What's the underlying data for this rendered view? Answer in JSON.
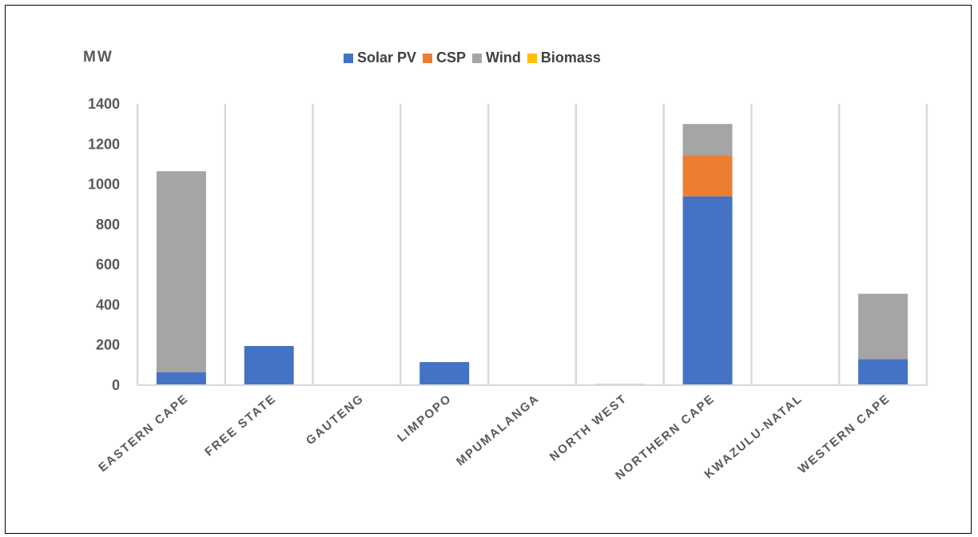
{
  "chart_data": {
    "type": "bar",
    "stacked": true,
    "title": "",
    "ylabel": "MW",
    "xlabel": "",
    "ylim": [
      0,
      1400
    ],
    "yticks": [
      0,
      200,
      400,
      600,
      800,
      1000,
      1200,
      1400
    ],
    "ytick_labels": [
      "0",
      "200",
      "400",
      "600",
      "800",
      "1000",
      "1200",
      "1400"
    ],
    "categories": [
      "EASTERN CAPE",
      "FREE STATE",
      "GAUTENG",
      "LIMPOPO",
      "MPUMALANGA",
      "NORTH WEST",
      "NORTHERN CAPE",
      "KWAZULU-NATAL",
      "WESTERN CAPE"
    ],
    "series": [
      {
        "name": "Solar PV",
        "color": "#4472C4",
        "values": [
          65,
          195,
          0,
          115,
          0,
          5,
          940,
          0,
          130
        ]
      },
      {
        "name": "CSP",
        "color": "#ED7D31",
        "values": [
          0,
          0,
          0,
          0,
          0,
          0,
          205,
          0,
          0
        ]
      },
      {
        "name": "Wind",
        "color": "#A5A5A5",
        "values": [
          1000,
          0,
          0,
          0,
          0,
          0,
          155,
          0,
          325
        ]
      },
      {
        "name": "Biomass",
        "color": "#FFC000",
        "values": [
          0,
          0,
          0,
          0,
          0,
          0,
          0,
          0,
          0
        ]
      }
    ],
    "legend_position": "top",
    "grid": "vertical-category-separators"
  }
}
